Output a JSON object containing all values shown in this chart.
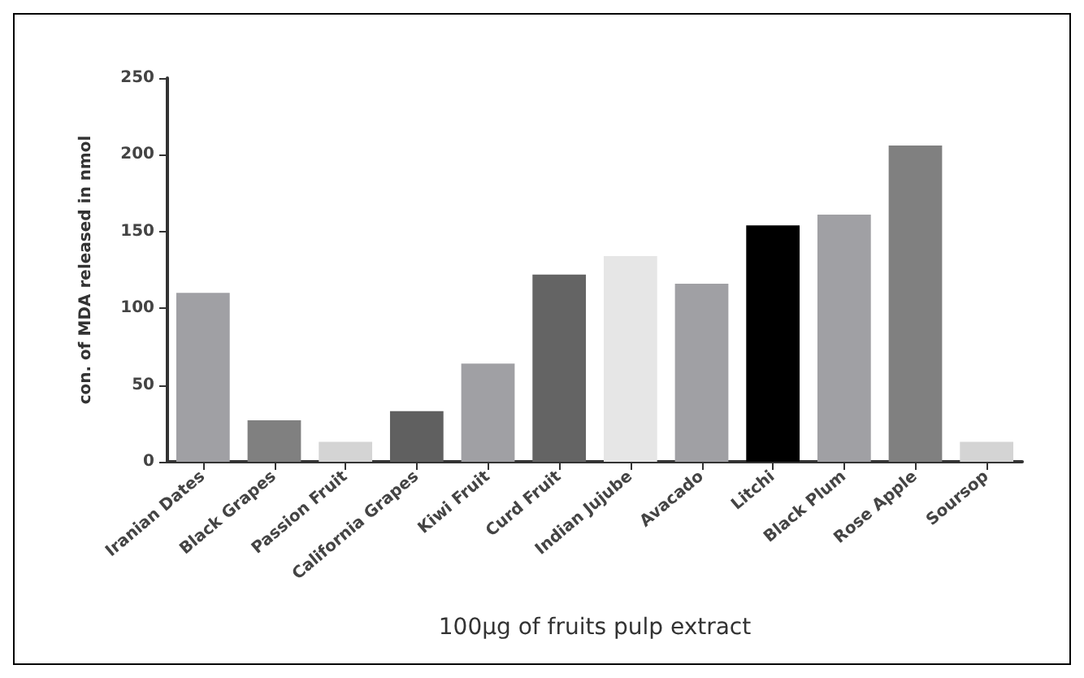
{
  "chart_data": {
    "type": "bar",
    "xlabel": "100µg of fruits pulp extract",
    "ylabel": "con. of MDA released in nmol",
    "categories": [
      "Iranian Dates",
      "Black Grapes",
      "Passion Fruit",
      "California Grapes",
      "Kiwi Fruit",
      "Curd Fruit",
      "Indian Jujube",
      "Avacado",
      "Litchi",
      "Black Plum",
      "Rose Apple",
      "Soursop"
    ],
    "values": [
      110,
      27,
      13,
      33,
      64,
      122,
      134,
      116,
      154,
      161,
      206,
      13
    ],
    "colors": [
      "#a0a0a4",
      "#808080",
      "#d4d4d4",
      "#606060",
      "#a0a0a4",
      "#646464",
      "#e6e6e6",
      "#a0a0a4",
      "#000000",
      "#a0a0a4",
      "#808080",
      "#d4d4d4"
    ],
    "ylim": [
      0,
      250
    ],
    "yticks": [
      0,
      50,
      100,
      150,
      200,
      250
    ],
    "grid": false
  }
}
